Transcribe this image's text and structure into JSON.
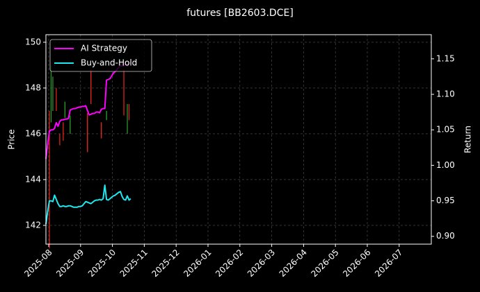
{
  "chart_data": {
    "type": "candlestick",
    "title": "futures [BB2603.DCE]",
    "y_label": "Price",
    "y2_label": "Return",
    "xticks": [
      "2025-08",
      "2025-09",
      "2025-10",
      "2025-11",
      "2025-12",
      "2026-01",
      "2026-02",
      "2026-03",
      "2026-04",
      "2026-05",
      "2026-06",
      "2026-07"
    ],
    "ylim": [
      141.18,
      150.33
    ],
    "yticks": [
      142,
      144,
      146,
      148,
      150
    ],
    "y2lim": [
      0.889,
      1.184
    ],
    "y2ticks": [
      {
        "value": 0.9,
        "label": "0.90"
      },
      0.95,
      {
        "value": 1,
        "label": "1.00"
      },
      1.05,
      {
        "value": 1.1,
        "label": "1.10"
      },
      1.15
    ],
    "grid": true,
    "legend": "upper left",
    "candles": {
      "up_color": "#2ca02c",
      "down_color": "#e8261c",
      "open": [
        null,
        null,
        147.0,
        146.5,
        147.0,
        null,
        148.0,
        null,
        146.0,
        null,
        146.5,
        146.7,
        null,
        null,
        146.0,
        null,
        null,
        null,
        null,
        null,
        null,
        null,
        null,
        null,
        146.9,
        null,
        148.8,
        null,
        null,
        null,
        null,
        null,
        146.5,
        null,
        null,
        146.6,
        null,
        null,
        null,
        null,
        null,
        null,
        null,
        null,
        null,
        148.8,
        null,
        146.0,
        147.3,
        null
      ],
      "high": [
        null,
        null,
        147.0,
        149.0,
        148.5,
        null,
        148.0,
        null,
        146.0,
        null,
        146.5,
        147.4,
        null,
        null,
        146.8,
        null,
        null,
        null,
        null,
        null,
        null,
        null,
        null,
        null,
        146.9,
        null,
        148.8,
        null,
        null,
        null,
        null,
        null,
        146.5,
        null,
        null,
        147.0,
        null,
        null,
        null,
        null,
        null,
        null,
        null,
        null,
        null,
        148.8,
        null,
        147.3,
        147.3,
        null
      ],
      "low": [
        null,
        null,
        141.0,
        146.5,
        147.0,
        null,
        147.0,
        null,
        145.5,
        null,
        145.7,
        146.7,
        null,
        null,
        146.0,
        null,
        null,
        null,
        null,
        null,
        null,
        null,
        null,
        null,
        145.2,
        null,
        147.3,
        null,
        null,
        null,
        null,
        null,
        145.8,
        null,
        null,
        146.6,
        null,
        null,
        null,
        null,
        null,
        null,
        null,
        null,
        null,
        146.8,
        null,
        146.0,
        146.6,
        null
      ],
      "close": [
        null,
        null,
        141.0,
        149.0,
        148.5,
        null,
        147.0,
        null,
        145.5,
        null,
        145.7,
        147.4,
        null,
        null,
        146.8,
        null,
        null,
        null,
        null,
        null,
        null,
        null,
        null,
        null,
        145.2,
        null,
        147.3,
        null,
        null,
        null,
        null,
        null,
        145.8,
        null,
        null,
        147.0,
        null,
        null,
        null,
        null,
        null,
        null,
        null,
        null,
        null,
        146.8,
        null,
        147.3,
        146.6,
        null
      ]
    },
    "series": [
      {
        "name": "AI Strategy",
        "color": "#ff00ff",
        "axis": "y2",
        "values": [
          1.009,
          1.03,
          1.048,
          1.05,
          1.05,
          1.052,
          1.06,
          1.055,
          1.062,
          1.064,
          1.064,
          1.065,
          1.065,
          1.066,
          1.078,
          1.079,
          1.08,
          1.08,
          1.081,
          1.082,
          1.082,
          1.083,
          1.083,
          1.084,
          1.077,
          1.071,
          1.072,
          1.073,
          1.073,
          1.075,
          1.075,
          1.074,
          1.079,
          1.08,
          1.08,
          1.12,
          1.121,
          1.122,
          1.126,
          1.13,
          1.132,
          1.135,
          1.138,
          1.14,
          1.14,
          1.14,
          1.142,
          1.14,
          1.143,
          1.145
        ]
      },
      {
        "name": "Buy-and-Hold",
        "color": "#1de9f0",
        "axis": "y2",
        "values": [
          0.917,
          0.935,
          0.95,
          0.95,
          0.949,
          0.958,
          0.952,
          0.946,
          0.942,
          0.942,
          0.943,
          0.942,
          0.942,
          0.943,
          0.943,
          0.942,
          0.941,
          0.941,
          0.941,
          0.942,
          0.942,
          0.943,
          0.946,
          0.949,
          0.948,
          0.947,
          0.946,
          0.948,
          0.95,
          0.951,
          0.951,
          0.952,
          0.951,
          0.953,
          0.972,
          0.952,
          0.951,
          0.953,
          0.955,
          0.957,
          0.958,
          0.96,
          0.962,
          0.963,
          0.956,
          0.952,
          0.951,
          0.957,
          0.951,
          0.953
        ]
      }
    ]
  }
}
